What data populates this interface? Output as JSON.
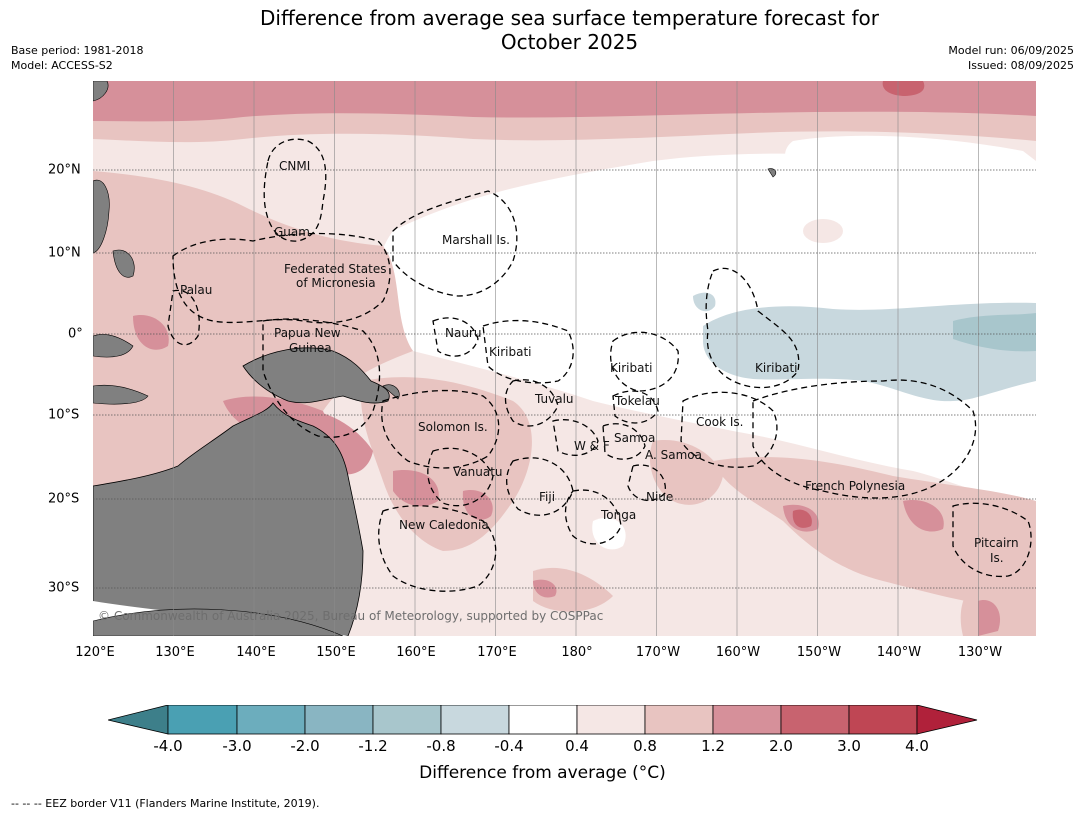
{
  "title_line1": "Difference from average sea surface temperature forecast for",
  "title_line2": "October 2025",
  "meta": {
    "base_period": "Base period: 1981-2018",
    "model": "Model: ACCESS-S2",
    "model_run": "Model run: 06/09/2025",
    "issued": "Issued: 08/09/2025"
  },
  "axes": {
    "lon_ticks": [
      "120°E",
      "130°E",
      "140°E",
      "150°E",
      "160°E",
      "170°E",
      "180°",
      "170°W",
      "160°W",
      "150°W",
      "140°W",
      "130°W"
    ],
    "lat_ticks": [
      "20°N",
      "10°N",
      "0°",
      "10°S",
      "20°S",
      "30°S"
    ]
  },
  "regions": {
    "cnmi": "CNMI",
    "guam": "Guam",
    "marshall": "Marshall Is.",
    "fsm_1": "Federated States",
    "fsm_2": "of Micronesia",
    "palau": "Palau",
    "png_1": "Papua New",
    "png_2": "Guinea",
    "nauru": "Nauru",
    "kiribati_w": "Kiribati",
    "kiribati_c": "Kiribati",
    "kiribati_e": "Kiribati",
    "tuvalu": "Tuvalu",
    "tokelau": "Tokelau",
    "cook": "Cook Is.",
    "solomon": "Solomon Is.",
    "wf": "W & F",
    "samoa": "Samoa",
    "asamoa": "A. Samoa",
    "vanuatu": "Vanuatu",
    "fiji": "Fiji",
    "niue": "Niue",
    "tonga": "Tonga",
    "fpoly": "French Polynesia",
    "newcal": "New Caledonia",
    "pitcairn_1": "Pitcairn",
    "pitcairn_2": "Is."
  },
  "copyright": "© Commonwealth of Australia 2025, Bureau of Meteorology, supported by COSPPac",
  "colorbar": {
    "ticks": [
      "-4.0",
      "-3.0",
      "-2.0",
      "-1.2",
      "-0.8",
      "-0.4",
      "0.4",
      "0.8",
      "1.2",
      "2.0",
      "3.0",
      "4.0"
    ],
    "colors": [
      "#3d7f8a",
      "#4aa0b3",
      "#6cadbd",
      "#89b5c2",
      "#a8c6cc",
      "#c8d8de",
      "#ffffff",
      "#f5e7e5",
      "#e8c4c1",
      "#d6909a",
      "#c8636f",
      "#bf4654",
      "#b0213a"
    ],
    "label": "Difference from average (°C)"
  },
  "footnote": "--  --  -- EEZ border V11 (Flanders Marine Institute, 2019).",
  "colors": {
    "land": "#808080",
    "anomaly_0_8": "#f5e7e5",
    "anomaly_1_2": "#e8c4c1",
    "anomaly_2_0": "#d6909a",
    "anomaly_3_0": "#c8636f",
    "anomaly_neg_0_8": "#c8d8de",
    "anomaly_neg_1_2": "#a8c6cc"
  }
}
